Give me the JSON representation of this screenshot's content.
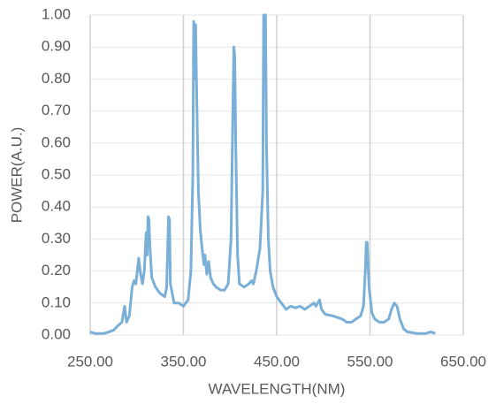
{
  "chart_data": {
    "type": "line",
    "xlabel": "WAVELENGTH(NM)",
    "ylabel": "POWER(A.U.)",
    "x": [
      250,
      255,
      260,
      265,
      270,
      275,
      280,
      284,
      287,
      289,
      292,
      295,
      297,
      299,
      302,
      304,
      306,
      308,
      310,
      311,
      312,
      313,
      314,
      316,
      320,
      325,
      330,
      332,
      334,
      335,
      336,
      338,
      340,
      345,
      350,
      355,
      358,
      360,
      361,
      362,
      363,
      364,
      366,
      368,
      370,
      372,
      373,
      375,
      377,
      379,
      382,
      385,
      390,
      394,
      398,
      401,
      403,
      404,
      405,
      406,
      408,
      410,
      415,
      420,
      423,
      425,
      428,
      432,
      435,
      436,
      438,
      439,
      441,
      443,
      446,
      450,
      455,
      460,
      465,
      470,
      475,
      480,
      485,
      490,
      492,
      494,
      496,
      498,
      502,
      510,
      520,
      525,
      530,
      535,
      540,
      543,
      545,
      546,
      547,
      549,
      552,
      555,
      560,
      565,
      570,
      573,
      576,
      579,
      582,
      586,
      590,
      600,
      610,
      615,
      620
    ],
    "values": [
      0.01,
      0.005,
      0.005,
      0.005,
      0.01,
      0.015,
      0.03,
      0.04,
      0.09,
      0.04,
      0.06,
      0.15,
      0.17,
      0.16,
      0.24,
      0.19,
      0.16,
      0.2,
      0.32,
      0.25,
      0.37,
      0.36,
      0.28,
      0.18,
      0.15,
      0.13,
      0.12,
      0.15,
      0.37,
      0.36,
      0.16,
      0.13,
      0.1,
      0.1,
      0.09,
      0.11,
      0.2,
      0.5,
      0.98,
      0.8,
      0.97,
      0.78,
      0.45,
      0.33,
      0.27,
      0.22,
      0.25,
      0.19,
      0.23,
      0.18,
      0.16,
      0.15,
      0.14,
      0.14,
      0.16,
      0.3,
      0.7,
      0.9,
      0.87,
      0.6,
      0.25,
      0.16,
      0.15,
      0.16,
      0.17,
      0.16,
      0.2,
      0.27,
      0.45,
      1.0,
      1.0,
      0.6,
      0.3,
      0.2,
      0.15,
      0.12,
      0.1,
      0.08,
      0.09,
      0.085,
      0.09,
      0.08,
      0.09,
      0.1,
      0.09,
      0.1,
      0.11,
      0.08,
      0.065,
      0.06,
      0.05,
      0.04,
      0.04,
      0.05,
      0.06,
      0.09,
      0.2,
      0.29,
      0.29,
      0.15,
      0.07,
      0.05,
      0.04,
      0.04,
      0.05,
      0.08,
      0.1,
      0.09,
      0.05,
      0.02,
      0.01,
      0.005,
      0.005,
      0.01,
      0.005
    ],
    "color": "#7aafd8",
    "xlim": [
      250,
      650
    ],
    "xticks": [
      {
        "value": 250,
        "label": "250.00"
      },
      {
        "value": 350,
        "label": "350.00"
      },
      {
        "value": 450,
        "label": "450.00"
      },
      {
        "value": 550,
        "label": "550.00"
      },
      {
        "value": 650,
        "label": "650.00"
      }
    ],
    "ylim": [
      0,
      1
    ],
    "yticks": [
      {
        "value": 0,
        "label": "0.00"
      },
      {
        "value": 0.1,
        "label": "0.10"
      },
      {
        "value": 0.2,
        "label": "0.20"
      },
      {
        "value": 0.3,
        "label": "0.30"
      },
      {
        "value": 0.4,
        "label": "0.40"
      },
      {
        "value": 0.5,
        "label": "0.50"
      },
      {
        "value": 0.6,
        "label": "0.60"
      },
      {
        "value": 0.7,
        "label": "0.70"
      },
      {
        "value": 0.8,
        "label": "0.80"
      },
      {
        "value": 0.9,
        "label": "0.90"
      },
      {
        "value": 1,
        "label": "1.00"
      }
    ],
    "grid": true
  }
}
